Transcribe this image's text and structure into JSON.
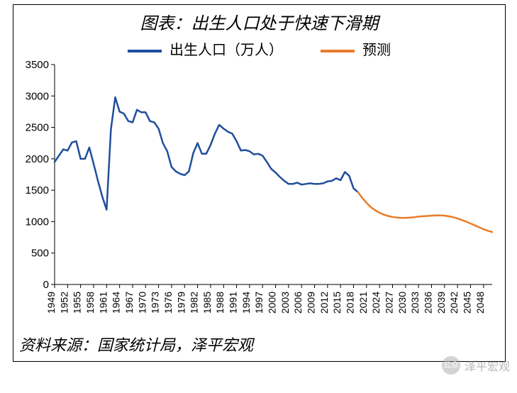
{
  "title": "图表：出生人口处于快速下滑期",
  "source": "资料来源：国家统计局，泽平宏观",
  "watermark_text": "泽平宏观",
  "watermark_icon_label": "公众号",
  "legend": [
    {
      "label": "出生人口（万人）",
      "color": "#1f4e9c"
    },
    {
      "label": "预测",
      "color": "#e87c2a"
    }
  ],
  "chart": {
    "type": "line",
    "background_color": "#ffffff",
    "grid": false,
    "border_color": "#000000",
    "line_width": 2.5,
    "ylim": [
      0,
      3500
    ],
    "ytick_step": 500,
    "yticks": [
      0,
      500,
      1000,
      1500,
      2000,
      2500,
      3000,
      3500
    ],
    "x_start": 1949,
    "x_end": 2050,
    "xticks": [
      1949,
      1952,
      1955,
      1958,
      1961,
      1964,
      1967,
      1970,
      1973,
      1976,
      1979,
      1982,
      1985,
      1988,
      1991,
      1994,
      1997,
      2000,
      2003,
      2006,
      2009,
      2012,
      2015,
      2018,
      2021,
      2024,
      2027,
      2030,
      2033,
      2036,
      2039,
      2042,
      2045,
      2048
    ],
    "series": [
      {
        "name": "actual",
        "color": "#1f4e9c",
        "data": [
          [
            1949,
            1950
          ],
          [
            1950,
            2050
          ],
          [
            1951,
            2150
          ],
          [
            1952,
            2130
          ],
          [
            1953,
            2260
          ],
          [
            1954,
            2280
          ],
          [
            1955,
            2000
          ],
          [
            1956,
            2000
          ],
          [
            1957,
            2180
          ],
          [
            1958,
            1920
          ],
          [
            1959,
            1650
          ],
          [
            1960,
            1400
          ],
          [
            1961,
            1190
          ],
          [
            1962,
            2470
          ],
          [
            1963,
            2980
          ],
          [
            1964,
            2750
          ],
          [
            1965,
            2720
          ],
          [
            1966,
            2600
          ],
          [
            1967,
            2580
          ],
          [
            1968,
            2780
          ],
          [
            1969,
            2740
          ],
          [
            1970,
            2740
          ],
          [
            1971,
            2600
          ],
          [
            1972,
            2580
          ],
          [
            1973,
            2480
          ],
          [
            1974,
            2250
          ],
          [
            1975,
            2120
          ],
          [
            1976,
            1870
          ],
          [
            1977,
            1800
          ],
          [
            1978,
            1760
          ],
          [
            1979,
            1740
          ],
          [
            1980,
            1800
          ],
          [
            1981,
            2090
          ],
          [
            1982,
            2250
          ],
          [
            1983,
            2080
          ],
          [
            1984,
            2080
          ],
          [
            1985,
            2220
          ],
          [
            1986,
            2400
          ],
          [
            1987,
            2540
          ],
          [
            1988,
            2480
          ],
          [
            1989,
            2430
          ],
          [
            1990,
            2400
          ],
          [
            1991,
            2280
          ],
          [
            1992,
            2130
          ],
          [
            1993,
            2140
          ],
          [
            1994,
            2120
          ],
          [
            1995,
            2070
          ],
          [
            1996,
            2080
          ],
          [
            1997,
            2050
          ],
          [
            1998,
            1950
          ],
          [
            1999,
            1840
          ],
          [
            2000,
            1780
          ],
          [
            2001,
            1710
          ],
          [
            2002,
            1650
          ],
          [
            2003,
            1600
          ],
          [
            2004,
            1600
          ],
          [
            2005,
            1620
          ],
          [
            2006,
            1590
          ],
          [
            2007,
            1600
          ],
          [
            2008,
            1610
          ],
          [
            2009,
            1600
          ],
          [
            2010,
            1600
          ],
          [
            2011,
            1610
          ],
          [
            2012,
            1640
          ],
          [
            2013,
            1650
          ],
          [
            2014,
            1690
          ],
          [
            2015,
            1660
          ],
          [
            2016,
            1790
          ],
          [
            2017,
            1730
          ],
          [
            2018,
            1530
          ],
          [
            2019,
            1470
          ]
        ]
      },
      {
        "name": "forecast",
        "color": "#e87c2a",
        "data": [
          [
            2019,
            1470
          ],
          [
            2020,
            1380
          ],
          [
            2021,
            1300
          ],
          [
            2022,
            1230
          ],
          [
            2023,
            1180
          ],
          [
            2024,
            1140
          ],
          [
            2025,
            1110
          ],
          [
            2026,
            1090
          ],
          [
            2027,
            1075
          ],
          [
            2028,
            1065
          ],
          [
            2029,
            1060
          ],
          [
            2030,
            1060
          ],
          [
            2031,
            1065
          ],
          [
            2032,
            1070
          ],
          [
            2033,
            1080
          ],
          [
            2034,
            1085
          ],
          [
            2035,
            1090
          ],
          [
            2036,
            1095
          ],
          [
            2037,
            1100
          ],
          [
            2038,
            1100
          ],
          [
            2039,
            1095
          ],
          [
            2040,
            1085
          ],
          [
            2041,
            1070
          ],
          [
            2042,
            1050
          ],
          [
            2043,
            1025
          ],
          [
            2044,
            1000
          ],
          [
            2045,
            970
          ],
          [
            2046,
            940
          ],
          [
            2047,
            910
          ],
          [
            2048,
            880
          ],
          [
            2049,
            855
          ],
          [
            2050,
            835
          ]
        ]
      }
    ],
    "tick_fontsize": 15,
    "xlabel_fontsize": 14,
    "axis_color": "#000000",
    "tick_length": 5
  }
}
